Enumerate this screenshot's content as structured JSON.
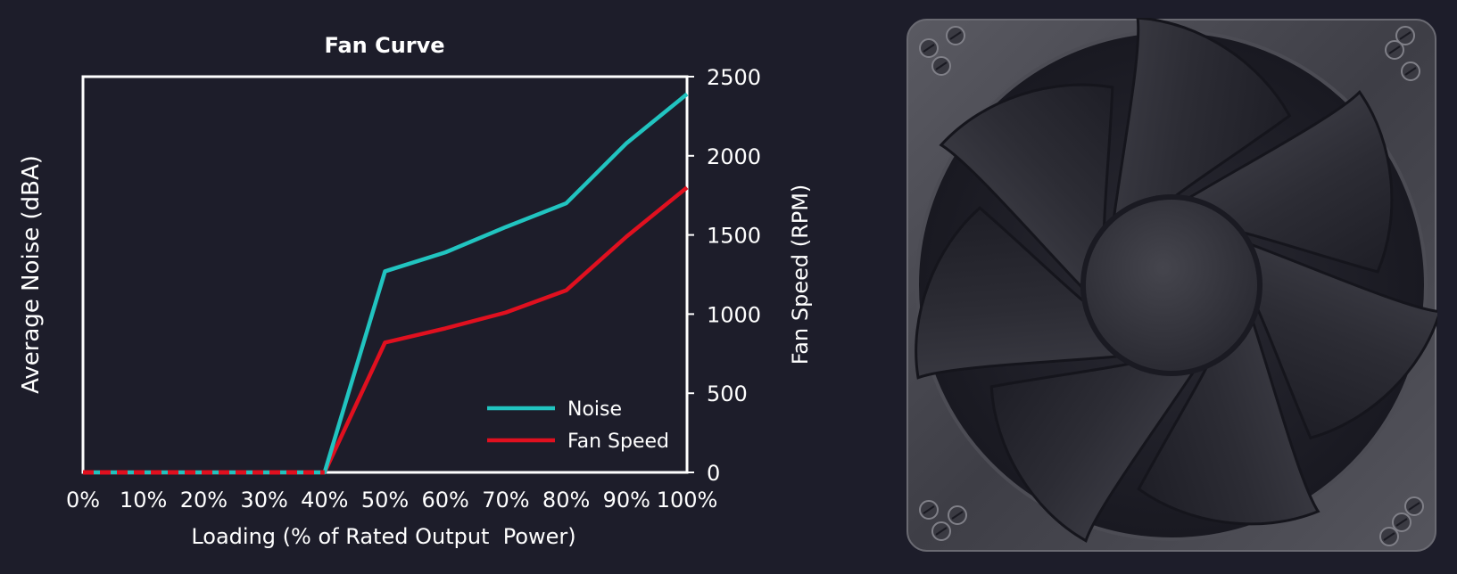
{
  "chart_data": {
    "type": "line",
    "title": "Fan Curve",
    "xlabel": "Loading (% of Rated Output  Power)",
    "ylabel_left": "Average Noise (dBA)",
    "ylabel_right": "Fan Speed (RPM)",
    "x": [
      0,
      10,
      20,
      30,
      40,
      50,
      60,
      70,
      80,
      90,
      100
    ],
    "x_tick_labels": [
      "0%",
      "10%",
      "20%",
      "30%",
      "40%",
      "50%",
      "60%",
      "70%",
      "80%",
      "90%",
      "100%"
    ],
    "xlim": [
      0,
      100
    ],
    "ylim_right": [
      0,
      2500
    ],
    "y_right_ticks": [
      0,
      500,
      1000,
      1500,
      2000,
      2500
    ],
    "y_right_tick_labels": [
      "0",
      "500",
      "1000",
      "1500",
      "2000",
      "2500"
    ],
    "y_left_ticks_shown": false,
    "grid": false,
    "legend": "bottom-right",
    "series": [
      {
        "name": "Noise",
        "color": "#21c4c0",
        "x": [
          0,
          40,
          50,
          60,
          70,
          80,
          90,
          100
        ],
        "y_rpm_scale": [
          0,
          0,
          1270,
          1390,
          1550,
          1700,
          2080,
          2390
        ]
      },
      {
        "name": "Fan Speed",
        "color": "#e0101f",
        "x": [
          0,
          40,
          50,
          60,
          70,
          80,
          90,
          100
        ],
        "y": [
          0,
          0,
          820,
          910,
          1010,
          1150,
          1490,
          1800
        ]
      }
    ],
    "zero_segment_style": "dashed",
    "frame_color": "#ffffff"
  },
  "image": {
    "subject": "fan-icon",
    "frame_color": "#4a4a52",
    "blade_color": "#2e2e36",
    "hub_color": "#3a3a42"
  }
}
